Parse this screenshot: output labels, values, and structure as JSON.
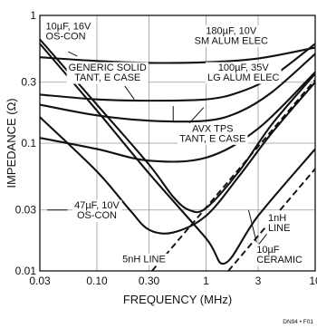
{
  "chart_data": {
    "type": "line",
    "xlabel": "FREQUENCY (MHz)",
    "ylabel": "IMPEDANCE (Ω)",
    "x_scale": "log",
    "y_scale": "log",
    "xlim": [
      0.03,
      10
    ],
    "ylim": [
      0.01,
      1
    ],
    "x_ticks": [
      {
        "value": 0.03,
        "label": "0.03"
      },
      {
        "value": 0.1,
        "label": "0.10"
      },
      {
        "value": 0.3,
        "label": "0.30"
      },
      {
        "value": 1,
        "label": "1"
      },
      {
        "value": 3,
        "label": "3"
      },
      {
        "value": 10,
        "label": "10"
      }
    ],
    "y_ticks": [
      {
        "value": 0.01,
        "label": "0.01"
      },
      {
        "value": 0.03,
        "label": "0.03"
      },
      {
        "value": 0.1,
        "label": "0.1"
      },
      {
        "value": 0.3,
        "label": "0.3"
      },
      {
        "value": 1,
        "label": "1"
      }
    ],
    "grid": true,
    "figure_id": "DN94 • F01",
    "series": [
      {
        "key": "sm-alum",
        "style": "solid",
        "x": [
          0.03,
          0.1,
          0.3,
          1,
          3,
          10
        ],
        "y": [
          0.47,
          0.44,
          0.425,
          0.43,
          0.46,
          0.56
        ]
      },
      {
        "key": "lg-alum",
        "style": "solid",
        "x": [
          0.03,
          0.1,
          0.3,
          1,
          2,
          4,
          10
        ],
        "y": [
          0.24,
          0.22,
          0.215,
          0.22,
          0.25,
          0.33,
          0.6
        ]
      },
      {
        "key": "generic-solid",
        "style": "solid",
        "x": [
          0.03,
          0.1,
          0.3,
          1,
          2,
          4,
          10
        ],
        "y": [
          0.2,
          0.165,
          0.15,
          0.15,
          0.175,
          0.25,
          0.5
        ]
      },
      {
        "key": "avx-tps",
        "style": "solid",
        "x": [
          0.03,
          0.1,
          0.3,
          1,
          3,
          10
        ],
        "y": [
          0.11,
          0.09,
          0.073,
          0.077,
          0.13,
          0.36
        ]
      },
      {
        "key": "os-con-16v",
        "style": "solid",
        "x": [
          0.03,
          0.1,
          0.3,
          0.5,
          0.7,
          1,
          2,
          4,
          10
        ],
        "y": [
          0.65,
          0.2,
          0.068,
          0.038,
          0.03,
          0.031,
          0.06,
          0.14,
          0.35
        ]
      },
      {
        "key": "os-con-10v",
        "style": "solid",
        "x": [
          0.03,
          0.1,
          0.2,
          0.3,
          0.5,
          1,
          2,
          4,
          10
        ],
        "y": [
          0.16,
          0.06,
          0.03,
          0.021,
          0.02,
          0.027,
          0.055,
          0.12,
          0.3
        ]
      },
      {
        "key": "ceramic-10uF",
        "style": "solid",
        "x": [
          0.03,
          0.1,
          0.3,
          1,
          1.5,
          3,
          10
        ],
        "y": [
          0.6,
          0.18,
          0.058,
          0.018,
          0.0115,
          0.027,
          0.09
        ]
      },
      {
        "key": "5nH-line",
        "style": "dashed",
        "x": [
          0.32,
          10
        ],
        "y": [
          0.01,
          0.314
        ]
      },
      {
        "key": "1nH-line",
        "style": "dashed",
        "x": [
          1.6,
          10
        ],
        "y": [
          0.01,
          0.063
        ]
      }
    ],
    "annotations": [
      {
        "lines": [
          "10µF, 16V",
          "OS-CON"
        ],
        "x": 0.034,
        "y": 0.76,
        "anchor": "start",
        "box": true
      },
      {
        "lines": [
          "180µF, 10V",
          "SM ALUM ELEC"
        ],
        "x": 1.7,
        "y": 0.7,
        "anchor": "middle",
        "box": true
      },
      {
        "lines": [
          "GENERIC SOLID",
          "TANT, E CASE"
        ],
        "x": 0.125,
        "y": 0.36,
        "anchor": "middle",
        "box": true
      },
      {
        "lines": [
          "100µF, 35V",
          "LG ALUM ELEC"
        ],
        "x": 2.2,
        "y": 0.36,
        "anchor": "middle",
        "box": true
      },
      {
        "lines": [
          "AVX TPS",
          "TANT, E CASE"
        ],
        "x": 1.15,
        "y": 0.12,
        "anchor": "middle",
        "box": true
      },
      {
        "lines": [
          "47µF, 10V",
          "OS-CON"
        ],
        "x": 0.1,
        "y": 0.03,
        "anchor": "middle",
        "box": true
      },
      {
        "lines": [
          "5nH LINE"
        ],
        "x": 0.27,
        "y": 0.0125,
        "anchor": "middle",
        "box": true
      },
      {
        "lines": [
          "1nH",
          "LINE"
        ],
        "x": 3.7,
        "y": 0.024,
        "anchor": "start",
        "box": true
      },
      {
        "lines": [
          "10µF",
          "CERAMIC"
        ],
        "x": 2.9,
        "y": 0.0135,
        "anchor": "start",
        "box": true
      }
    ],
    "leaders": [
      {
        "from": [
          0.0545,
          0.52
        ],
        "to": [
          0.066,
          0.48
        ]
      },
      {
        "from": [
          0.18,
          0.28
        ],
        "to": [
          0.22,
          0.22
        ]
      },
      {
        "from": [
          0.5,
          0.195
        ],
        "to": [
          0.5,
          0.148
        ]
      },
      {
        "from": [
          0.95,
          0.19
        ],
        "to": [
          0.7,
          0.143
        ]
      },
      {
        "from": [
          0.52,
          0.071
        ],
        "to": [
          0.42,
          0.071
        ]
      },
      {
        "from": [
          0.054,
          0.03
        ],
        "to": [
          0.035,
          0.03
        ]
      },
      {
        "from": [
          0.125,
          0.03
        ],
        "to": [
          0.16,
          0.03
        ]
      },
      {
        "from": [
          4.2,
          0.023
        ],
        "to": [
          3.05,
          0.0162
        ]
      },
      {
        "from": [
          2.9,
          0.0168
        ],
        "to": [
          2.45,
          0.03
        ]
      }
    ]
  }
}
